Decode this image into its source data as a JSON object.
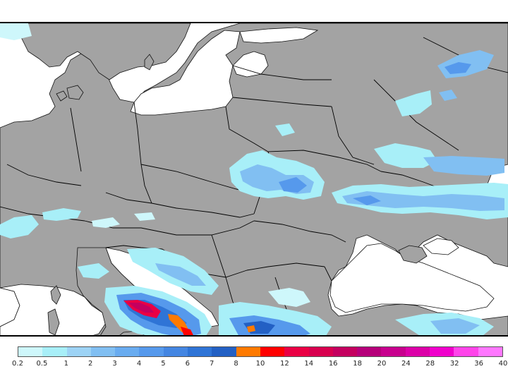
{
  "legend": {
    "colors": [
      "#cef7fb",
      "#a8eff8",
      "#9dd3f5",
      "#81bff2",
      "#69acf0",
      "#5699ec",
      "#4486e2",
      "#2f74d6",
      "#2360c4",
      "#ff7a00",
      "#ff0000",
      "#ea0044",
      "#d8004f",
      "#c4005f",
      "#b6007a",
      "#c8008e",
      "#dc00a8",
      "#f000cc",
      "#ff44ea",
      "#ff77ff"
    ],
    "labels": [
      "0.2",
      "0.5",
      "1",
      "2",
      "3",
      "4",
      "5",
      "6",
      "7",
      "8",
      "10",
      "12",
      "14",
      "16",
      "18",
      "20",
      "24",
      "28",
      "32",
      "36",
      "40"
    ]
  },
  "map": {
    "land_color": "#a3a3a3",
    "sea_color": "#ffffff",
    "border_color": "#000000"
  }
}
